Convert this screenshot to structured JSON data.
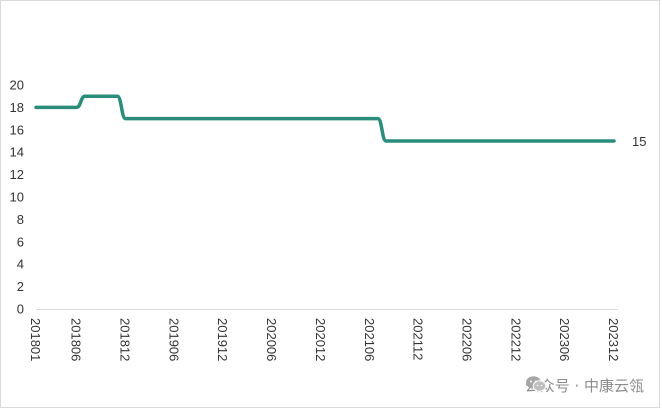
{
  "chart_data": {
    "type": "line",
    "title": "",
    "xlabel": "",
    "ylabel": "",
    "ylim": [
      0,
      20
    ],
    "yticks": [
      0,
      2,
      4,
      6,
      8,
      10,
      12,
      14,
      16,
      18,
      20
    ],
    "grid": false,
    "x_tick_labels": [
      "201801",
      "201806",
      "201812",
      "201906",
      "201912",
      "202006",
      "202012",
      "202106",
      "202112",
      "202206",
      "202212",
      "202306",
      "202312"
    ],
    "x": [
      "201801",
      "201802",
      "201803",
      "201804",
      "201805",
      "201806",
      "201807",
      "201808",
      "201809",
      "201810",
      "201811",
      "201812",
      "201901",
      "201902",
      "201903",
      "201904",
      "201905",
      "201906",
      "201907",
      "201908",
      "201909",
      "201910",
      "201911",
      "201912",
      "202001",
      "202002",
      "202003",
      "202004",
      "202005",
      "202006",
      "202007",
      "202008",
      "202009",
      "202010",
      "202011",
      "202012",
      "202101",
      "202102",
      "202103",
      "202104",
      "202105",
      "202106",
      "202107",
      "202108",
      "202109",
      "202110",
      "202111",
      "202112",
      "202201",
      "202202",
      "202203",
      "202204",
      "202205",
      "202206",
      "202207",
      "202208",
      "202209",
      "202210",
      "202211",
      "202212",
      "202301",
      "202302",
      "202303",
      "202304",
      "202305",
      "202306",
      "202307",
      "202308",
      "202309",
      "202310",
      "202311",
      "202312"
    ],
    "series": [
      {
        "color": "#2a8c7a",
        "values": [
          18,
          18,
          18,
          18,
          18,
          18,
          19,
          19,
          19,
          19,
          19,
          17,
          17,
          17,
          17,
          17,
          17,
          17,
          17,
          17,
          17,
          17,
          17,
          17,
          17,
          17,
          17,
          17,
          17,
          17,
          17,
          17,
          17,
          17,
          17,
          17,
          17,
          17,
          17,
          17,
          17,
          17,
          17,
          15,
          15,
          15,
          15,
          15,
          15,
          15,
          15,
          15,
          15,
          15,
          15,
          15,
          15,
          15,
          15,
          15,
          15,
          15,
          15,
          15,
          15,
          15,
          15,
          15,
          15,
          15,
          15,
          15
        ],
        "end_label": "15"
      }
    ]
  },
  "watermark": {
    "text": "公众号 · 中康云瓴",
    "icon": "wechat-icon"
  }
}
